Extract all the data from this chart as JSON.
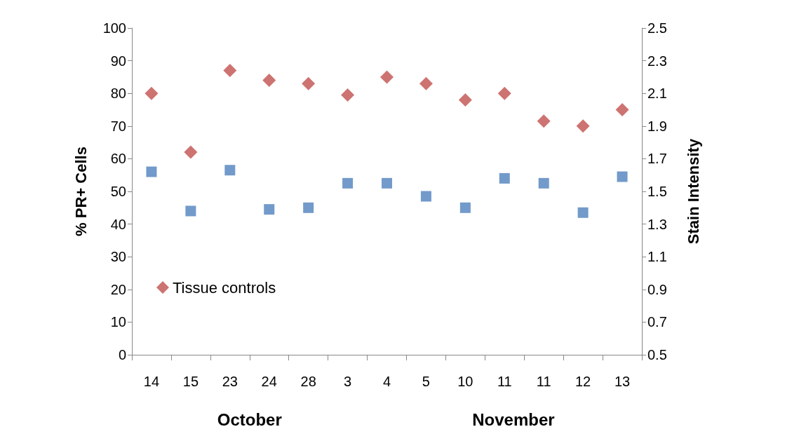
{
  "chart_data": {
    "type": "scatter",
    "ylabel": "% PR+ Cells",
    "y2label": "Stain Intensity",
    "categories": [
      "14",
      "15",
      "23",
      "24",
      "28",
      "3",
      "4",
      "5",
      "10",
      "11",
      "11",
      "12",
      "13"
    ],
    "series": [
      {
        "name": "Tissue controls",
        "color": "#c0504d",
        "marker": "diamond",
        "values": [
          80,
          62,
          87,
          84,
          83,
          79.5,
          85,
          83,
          78,
          80,
          71.5,
          70,
          75
        ]
      },
      {
        "color": "#4f81bd",
        "marker": "square",
        "axis": "y2",
        "values": [
          1.62,
          1.38,
          1.63,
          1.39,
          1.4,
          1.55,
          1.55,
          1.47,
          1.4,
          1.58,
          1.55,
          1.37,
          1.59
        ]
      }
    ],
    "ylim": [
      0,
      100
    ],
    "yticks": [
      0,
      10,
      20,
      30,
      40,
      50,
      60,
      70,
      80,
      90,
      100
    ],
    "y2lim": [
      0.5,
      2.5
    ],
    "y2ticks": [
      0.5,
      0.7,
      0.9,
      1.1,
      1.3,
      1.5,
      1.7,
      1.9,
      2.1,
      2.3,
      2.5
    ],
    "annotations": [
      "October",
      "November"
    ],
    "grid": false,
    "legend": "bottom left"
  }
}
